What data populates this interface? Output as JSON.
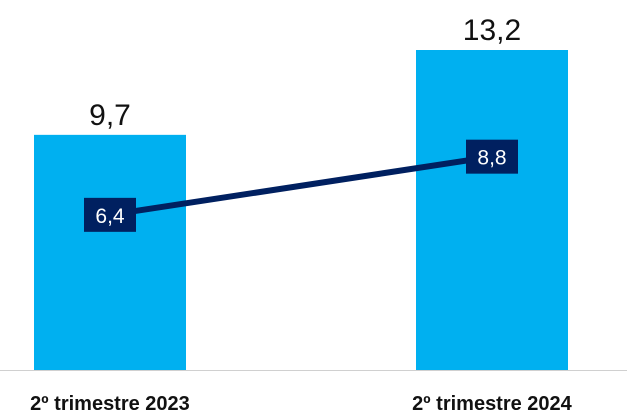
{
  "chart_data": {
    "type": "bar",
    "categories": [
      "2º trimestre 2023",
      "2º trimestre 2024"
    ],
    "series": [
      {
        "kind": "bar",
        "values": [
          9.7,
          13.2
        ],
        "labels": [
          "9,7",
          "13,2"
        ],
        "color": "#00b0f0"
      },
      {
        "kind": "line",
        "values": [
          6.4,
          8.8
        ],
        "labels": [
          "6,4",
          "8,8"
        ],
        "color": "#002060"
      }
    ],
    "title": "",
    "xlabel": "",
    "ylabel": "",
    "ylim": [
      0,
      13.2
    ],
    "grid": false,
    "legend": "none"
  }
}
